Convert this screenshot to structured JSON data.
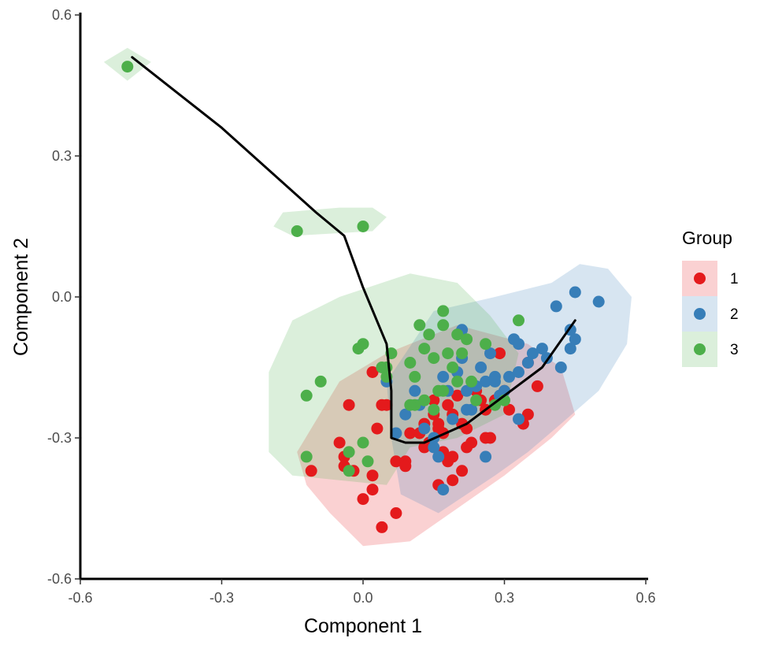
{
  "chart_data": {
    "type": "scatter",
    "xlabel": "Component 1",
    "ylabel": "Component 2",
    "xlim": [
      -0.6,
      0.6
    ],
    "ylim": [
      -0.6,
      0.6
    ],
    "x_ticks": [
      "-0.6",
      "-0.3",
      "0.0",
      "0.3",
      "0.6"
    ],
    "y_ticks": [
      "0.6",
      "0.3",
      "0.0",
      "-0.3",
      "-0.6"
    ],
    "x_tick_values": [
      -0.6,
      -0.3,
      0.0,
      0.3,
      0.6
    ],
    "y_tick_values": [
      0.6,
      0.3,
      0.0,
      -0.3,
      -0.6
    ],
    "grid": false,
    "legend": {
      "title": "Group",
      "position": "right",
      "entries": [
        "1",
        "2",
        "3"
      ]
    },
    "colors": {
      "1": "#e41a1c",
      "2": "#377eb8",
      "3": "#4daf4a"
    },
    "series": [
      {
        "name": "1",
        "hull": [
          [
            -0.14,
            -0.33
          ],
          [
            -0.05,
            -0.18
          ],
          [
            0.05,
            -0.12
          ],
          [
            0.2,
            -0.06
          ],
          [
            0.35,
            -0.1
          ],
          [
            0.42,
            -0.15
          ],
          [
            0.45,
            -0.25
          ],
          [
            0.4,
            -0.3
          ],
          [
            0.3,
            -0.38
          ],
          [
            0.2,
            -0.45
          ],
          [
            0.1,
            -0.52
          ],
          [
            0.0,
            -0.53
          ],
          [
            -0.07,
            -0.46
          ],
          [
            -0.12,
            -0.4
          ]
        ],
        "points": [
          [
            -0.11,
            -0.37
          ],
          [
            -0.04,
            -0.36
          ],
          [
            -0.02,
            -0.37
          ],
          [
            0.0,
            -0.43
          ],
          [
            0.02,
            -0.41
          ],
          [
            -0.03,
            -0.23
          ],
          [
            -0.05,
            -0.31
          ],
          [
            -0.04,
            -0.34
          ],
          [
            0.02,
            -0.38
          ],
          [
            0.03,
            -0.28
          ],
          [
            0.05,
            -0.23
          ],
          [
            0.04,
            -0.23
          ],
          [
            0.02,
            -0.16
          ],
          [
            0.07,
            -0.35
          ],
          [
            0.09,
            -0.35
          ],
          [
            0.1,
            -0.29
          ],
          [
            0.12,
            -0.29
          ],
          [
            0.13,
            -0.27
          ],
          [
            0.14,
            -0.31
          ],
          [
            0.15,
            -0.25
          ],
          [
            0.16,
            -0.27
          ],
          [
            0.17,
            -0.29
          ],
          [
            0.17,
            -0.33
          ],
          [
            0.19,
            -0.34
          ],
          [
            0.18,
            -0.35
          ],
          [
            0.15,
            -0.22
          ],
          [
            0.18,
            -0.23
          ],
          [
            0.19,
            -0.25
          ],
          [
            0.21,
            -0.27
          ],
          [
            0.22,
            -0.28
          ],
          [
            0.23,
            -0.31
          ],
          [
            0.25,
            -0.22
          ],
          [
            0.24,
            -0.2
          ],
          [
            0.26,
            -0.24
          ],
          [
            0.27,
            -0.3
          ],
          [
            0.26,
            -0.3
          ],
          [
            0.28,
            -0.22
          ],
          [
            0.29,
            -0.12
          ],
          [
            0.3,
            -0.2
          ],
          [
            0.31,
            -0.24
          ],
          [
            0.35,
            -0.25
          ],
          [
            0.34,
            -0.27
          ],
          [
            0.37,
            -0.19
          ],
          [
            0.35,
            -0.14
          ],
          [
            0.04,
            -0.49
          ],
          [
            0.07,
            -0.46
          ],
          [
            0.16,
            -0.4
          ],
          [
            0.19,
            -0.39
          ],
          [
            0.21,
            -0.37
          ],
          [
            0.09,
            -0.36
          ],
          [
            0.13,
            -0.32
          ],
          [
            0.2,
            -0.21
          ],
          [
            0.22,
            -0.32
          ],
          [
            0.16,
            -0.28
          ]
        ]
      },
      {
        "name": "2",
        "hull": [
          [
            0.05,
            -0.18
          ],
          [
            0.15,
            -0.03
          ],
          [
            0.28,
            0.0
          ],
          [
            0.4,
            0.03
          ],
          [
            0.46,
            0.07
          ],
          [
            0.52,
            0.06
          ],
          [
            0.57,
            0.0
          ],
          [
            0.56,
            -0.1
          ],
          [
            0.5,
            -0.2
          ],
          [
            0.42,
            -0.27
          ],
          [
            0.35,
            -0.33
          ],
          [
            0.28,
            -0.38
          ],
          [
            0.16,
            -0.46
          ],
          [
            0.08,
            -0.42
          ],
          [
            0.06,
            -0.3
          ]
        ],
        "points": [
          [
            0.05,
            -0.18
          ],
          [
            0.07,
            -0.29
          ],
          [
            0.09,
            -0.25
          ],
          [
            0.11,
            -0.2
          ],
          [
            0.12,
            -0.23
          ],
          [
            0.13,
            -0.28
          ],
          [
            0.15,
            -0.3
          ],
          [
            0.16,
            -0.34
          ],
          [
            0.17,
            -0.17
          ],
          [
            0.18,
            -0.2
          ],
          [
            0.2,
            -0.16
          ],
          [
            0.21,
            -0.07
          ],
          [
            0.21,
            -0.13
          ],
          [
            0.22,
            -0.2
          ],
          [
            0.23,
            -0.24
          ],
          [
            0.24,
            -0.19
          ],
          [
            0.25,
            -0.15
          ],
          [
            0.26,
            -0.18
          ],
          [
            0.27,
            -0.12
          ],
          [
            0.28,
            -0.17
          ],
          [
            0.29,
            -0.21
          ],
          [
            0.3,
            -0.2
          ],
          [
            0.31,
            -0.17
          ],
          [
            0.32,
            -0.09
          ],
          [
            0.33,
            -0.1
          ],
          [
            0.33,
            -0.16
          ],
          [
            0.35,
            -0.14
          ],
          [
            0.36,
            -0.12
          ],
          [
            0.38,
            -0.11
          ],
          [
            0.39,
            -0.13
          ],
          [
            0.41,
            -0.02
          ],
          [
            0.42,
            -0.15
          ],
          [
            0.44,
            -0.07
          ],
          [
            0.45,
            0.01
          ],
          [
            0.45,
            -0.09
          ],
          [
            0.5,
            -0.01
          ],
          [
            0.44,
            -0.11
          ],
          [
            0.33,
            -0.26
          ],
          [
            0.26,
            -0.34
          ],
          [
            0.17,
            -0.41
          ],
          [
            0.15,
            -0.32
          ],
          [
            0.22,
            -0.24
          ],
          [
            0.19,
            -0.26
          ],
          [
            0.28,
            -0.18
          ]
        ]
      },
      {
        "name": "3",
        "hull": [
          [
            -0.55,
            0.5
          ],
          [
            -0.5,
            0.53
          ],
          [
            -0.45,
            0.5
          ],
          [
            -0.5,
            0.46
          ],
          [
            -0.55,
            0.5
          ]
        ],
        "hull_2": [
          [
            -0.19,
            0.15
          ],
          [
            -0.17,
            0.18
          ],
          [
            -0.05,
            0.19
          ],
          [
            0.02,
            0.19
          ],
          [
            0.05,
            0.17
          ],
          [
            0.02,
            0.14
          ],
          [
            -0.15,
            0.13
          ]
        ],
        "hull_3": [
          [
            -0.2,
            -0.33
          ],
          [
            -0.2,
            -0.16
          ],
          [
            -0.15,
            -0.05
          ],
          [
            -0.05,
            0.0
          ],
          [
            0.1,
            0.05
          ],
          [
            0.2,
            0.03
          ],
          [
            0.27,
            -0.04
          ],
          [
            0.33,
            -0.12
          ],
          [
            0.3,
            -0.25
          ],
          [
            0.2,
            -0.3
          ],
          [
            0.1,
            -0.32
          ],
          [
            0.05,
            -0.4
          ],
          [
            -0.05,
            -0.39
          ],
          [
            -0.15,
            -0.38
          ]
        ],
        "points": [
          [
            -0.5,
            0.49
          ],
          [
            -0.14,
            0.14
          ],
          [
            0.0,
            0.15
          ],
          [
            -0.12,
            -0.21
          ],
          [
            -0.09,
            -0.18
          ],
          [
            -0.12,
            -0.34
          ],
          [
            -0.03,
            -0.33
          ],
          [
            -0.03,
            -0.37
          ],
          [
            0.0,
            -0.31
          ],
          [
            0.01,
            -0.35
          ],
          [
            -0.01,
            -0.11
          ],
          [
            0.0,
            -0.1
          ],
          [
            0.04,
            -0.15
          ],
          [
            0.05,
            -0.17
          ],
          [
            0.06,
            -0.12
          ],
          [
            0.1,
            -0.14
          ],
          [
            0.11,
            -0.17
          ],
          [
            0.11,
            -0.23
          ],
          [
            0.12,
            -0.06
          ],
          [
            0.13,
            -0.22
          ],
          [
            0.14,
            -0.08
          ],
          [
            0.15,
            -0.24
          ],
          [
            0.16,
            -0.2
          ],
          [
            0.17,
            -0.06
          ],
          [
            0.17,
            -0.2
          ],
          [
            0.17,
            -0.03
          ],
          [
            0.18,
            -0.12
          ],
          [
            0.19,
            -0.15
          ],
          [
            0.2,
            -0.18
          ],
          [
            0.2,
            -0.08
          ],
          [
            0.21,
            -0.12
          ],
          [
            0.22,
            -0.09
          ],
          [
            0.23,
            -0.18
          ],
          [
            0.24,
            -0.22
          ],
          [
            0.26,
            -0.1
          ],
          [
            0.28,
            -0.23
          ],
          [
            0.3,
            -0.22
          ],
          [
            0.33,
            -0.05
          ],
          [
            0.15,
            -0.13
          ],
          [
            0.1,
            -0.23
          ],
          [
            0.13,
            -0.11
          ],
          [
            0.05,
            -0.15
          ]
        ]
      }
    ],
    "trajectory": [
      [
        -0.49,
        0.51
      ],
      [
        -0.3,
        0.36
      ],
      [
        -0.1,
        0.18
      ],
      [
        -0.04,
        0.13
      ],
      [
        0.0,
        0.02
      ],
      [
        0.05,
        -0.1
      ],
      [
        0.06,
        -0.2
      ],
      [
        0.06,
        -0.3
      ],
      [
        0.09,
        -0.31
      ],
      [
        0.13,
        -0.31
      ],
      [
        0.22,
        -0.27
      ],
      [
        0.3,
        -0.21
      ],
      [
        0.38,
        -0.15
      ],
      [
        0.45,
        -0.05
      ]
    ]
  }
}
